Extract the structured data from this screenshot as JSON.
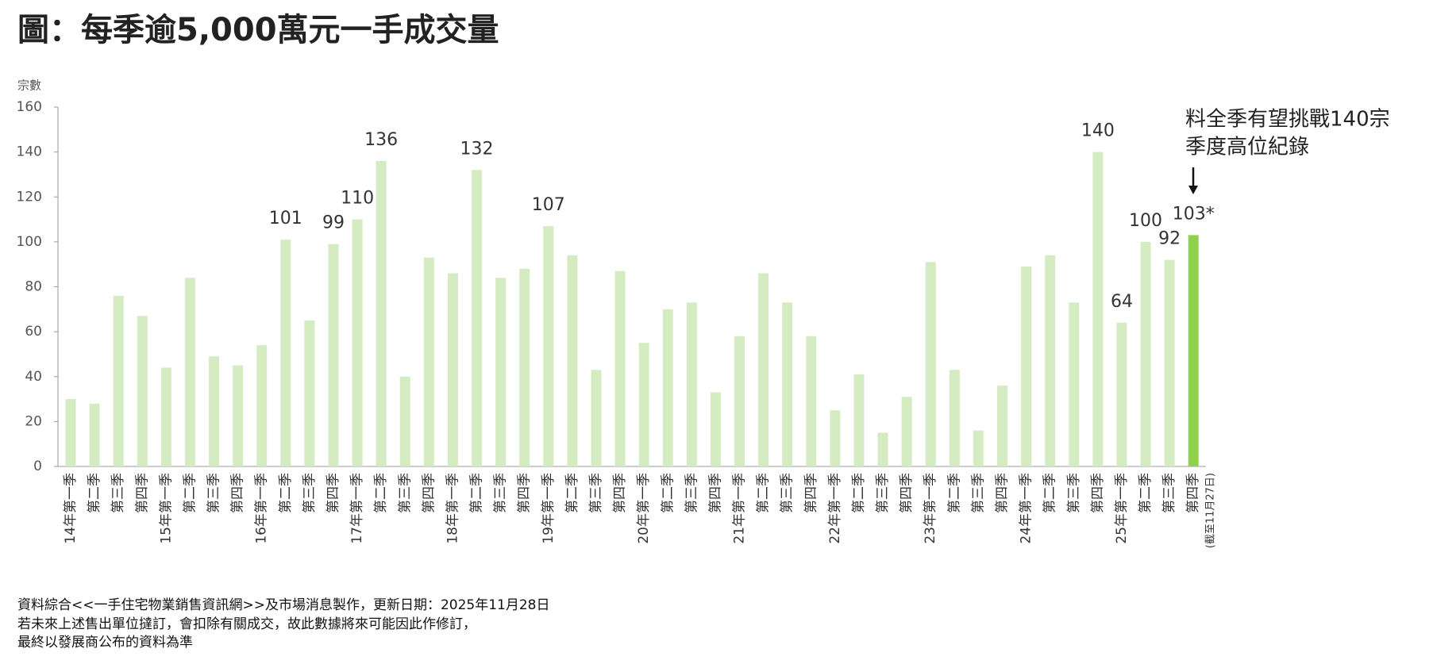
{
  "chart_data": {
    "type": "bar",
    "title": "圖：每季逾5,000萬元一手成交量",
    "y_label": "宗數",
    "categories": [
      "14年第一季",
      "第二季",
      "第三季",
      "第四季",
      "15年第一季",
      "第二季",
      "第三季",
      "第四季",
      "16年第一季",
      "第二季",
      "第三季",
      "第四季",
      "17年第一季",
      "第二季",
      "第三季",
      "第四季",
      "18年第一季",
      "第二季",
      "第三季",
      "第四季",
      "19年第一季",
      "第二季",
      "第三季",
      "第四季",
      "20年第一季",
      "第二季",
      "第三季",
      "第四季",
      "21年第一季",
      "第二季",
      "第三季",
      "第四季",
      "22年第一季",
      "第二季",
      "第三季",
      "第四季",
      "23年第一季",
      "第二季",
      "第三季",
      "第四季",
      "24年第一季",
      "第二季",
      "第三季",
      "第四季",
      "25年第一季",
      "第二季",
      "第三季",
      "第四季"
    ],
    "category_note": "(截至11月27日)",
    "values": [
      30,
      28,
      76,
      67,
      44,
      84,
      49,
      45,
      54,
      101,
      65,
      99,
      110,
      136,
      40,
      93,
      86,
      132,
      84,
      88,
      107,
      94,
      43,
      87,
      55,
      70,
      73,
      33,
      58,
      86,
      73,
      58,
      25,
      41,
      15,
      31,
      91,
      43,
      16,
      36,
      89,
      94,
      73,
      140,
      64,
      100,
      92,
      103
    ],
    "value_labels": [
      null,
      null,
      null,
      null,
      null,
      null,
      null,
      null,
      null,
      "101",
      null,
      "99",
      "110",
      "136",
      null,
      null,
      null,
      "132",
      null,
      null,
      "107",
      null,
      null,
      null,
      null,
      null,
      null,
      null,
      null,
      null,
      null,
      null,
      null,
      null,
      null,
      null,
      null,
      null,
      null,
      null,
      null,
      null,
      null,
      "140",
      "64",
      "100",
      "92",
      "103*"
    ],
    "color": "#d5ecc2",
    "last_color": "#8fd14f",
    "ylim": [
      0,
      160
    ],
    "yticks": [
      0,
      20,
      40,
      60,
      80,
      100,
      120,
      140,
      160
    ],
    "grid": false,
    "annotation": [
      "料全季有望挑戰140宗",
      "季度高位紀錄"
    ],
    "footnotes": [
      "資料綜合<<一手住宅物業銷售資訊網>>及市場消息製作，更新日期：2025年11月28日",
      "若未來上述售出單位撻訂，會扣除有關成交，故此數據將來可能因此作修訂，",
      "最終以發展商公布的資料為準"
    ]
  }
}
